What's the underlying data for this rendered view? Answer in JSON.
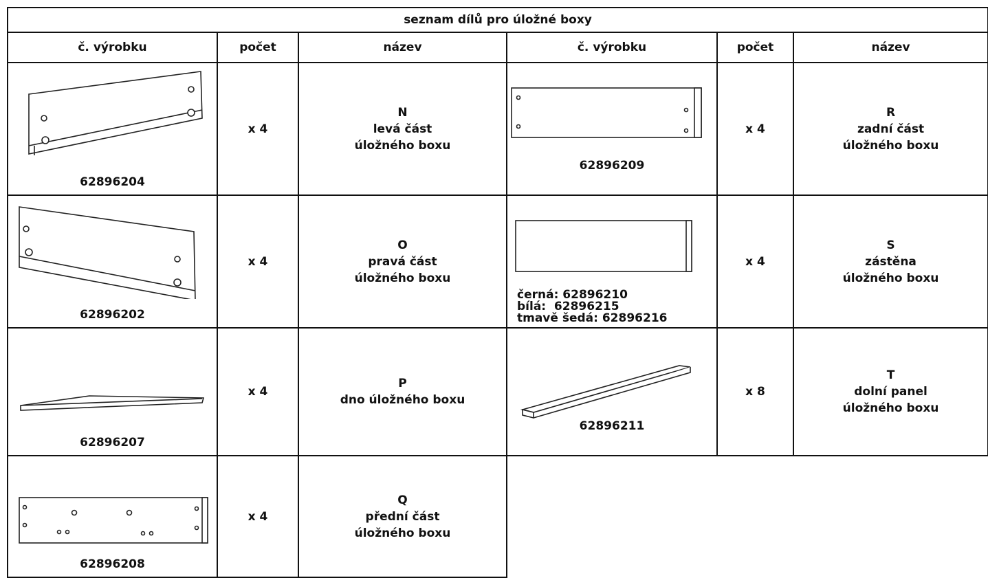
{
  "header": {
    "title": "seznam dílů pro úložné boxy"
  },
  "table": {
    "columns": [
      "č. výrobku",
      "počet",
      "název",
      "č. výrobku",
      "počet",
      "název"
    ],
    "rows": [
      {
        "left": {
          "part_numbers": [
            "62896204"
          ],
          "count": "x 4",
          "name": [
            "N",
            "levá část",
            "úložného boxu"
          ]
        },
        "right": {
          "part_numbers": [
            "62896209"
          ],
          "count": "x 4",
          "name": [
            "R",
            "zadní část",
            "úložného boxu"
          ]
        }
      },
      {
        "left": {
          "part_numbers": [
            "62896202"
          ],
          "count": "x 4",
          "name": [
            "O",
            "pravá část",
            "úložného boxu"
          ]
        },
        "right": {
          "part_numbers": [
            "černá: 62896210",
            "bílá:  62896215",
            "tmavě šedá: 62896216"
          ],
          "count": "x 4",
          "name": [
            "S",
            "zástěna",
            "úložného boxu"
          ]
        }
      },
      {
        "left": {
          "part_numbers": [
            "62896207"
          ],
          "count": "x 4",
          "name": [
            "P",
            "dno úložného boxu"
          ]
        },
        "right": {
          "part_numbers": [
            "62896211"
          ],
          "count": "x 8",
          "name": [
            "T",
            "dolní panel",
            "úložného boxu"
          ]
        }
      },
      {
        "left": {
          "part_numbers": [
            "62896208"
          ],
          "count": "x 4",
          "name": [
            "Q",
            "přední část",
            "úložného boxu"
          ]
        }
      }
    ]
  }
}
